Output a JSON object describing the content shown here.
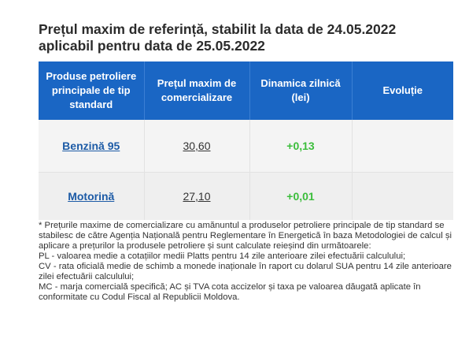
{
  "title_line1": "Prețul maxim de referință, stabilit la data de 24.05.2022",
  "title_line2": "aplicabil pentru data de 25.05.2022",
  "table": {
    "headers": [
      "Produse petroliere principale de tip standard",
      "Prețul maxim de comercializare",
      "Dinamica zilnică (lei)",
      "Evoluție"
    ],
    "rows": [
      {
        "product": "Benzină 95",
        "price": "30,60",
        "dynamics": "+0,13",
        "evolution": ""
      },
      {
        "product": "Motorină",
        "price": "27,10",
        "dynamics": "+0,01",
        "evolution": ""
      }
    ]
  },
  "notes": {
    "intro": "* Prețurile maxime de comercializare cu amănuntul a produselor petroliere principale de tip standard se stabilesc de către Agenția Națională pentru Reglementare în Energetică în baza Metodologiei de calcul și aplicare a prețurilor la produsele petroliere și sunt calculate reieșind din următoarele:",
    "pl": "PL - valoarea medie a cotațiilor medii Platts pentru 14 zile anterioare zilei efectuării calculului;",
    "cv": "CV - rata oficială medie de schimb a monede inaționale în raport cu dolarul SUA pentru 14 zile anterioare zilei efectuării calculului;",
    "mc": "MC - marja comercială specifică; AC și TVA cota accizelor și taxa pe valoarea dăugată aplicate în conformitate cu Codul Fiscal al Republicii Moldova."
  },
  "colors": {
    "header_bg": "#1a66c4",
    "positive_dynamics": "#3bbd3b",
    "link": "#1d5ba6"
  }
}
